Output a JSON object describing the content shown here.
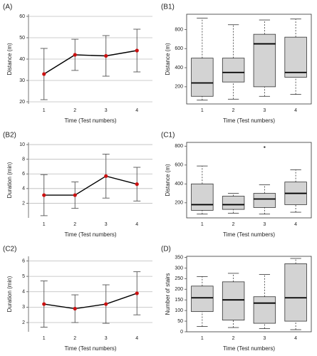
{
  "chart_data": [
    {
      "type": "line",
      "panel_label": "(A)",
      "x_label": "Time (Test numbers)",
      "y_label": "Distance (m)",
      "categories": [
        "1",
        "2",
        "3",
        "4"
      ],
      "values": [
        33,
        42,
        41.5,
        44
      ],
      "errors": [
        12,
        7.3,
        9.5,
        10
      ],
      "color": "#000000",
      "marker_color": "#cc1111",
      "ylim": [
        19,
        61
      ],
      "yticks": [
        20,
        30,
        40,
        50,
        60
      ],
      "grid": true
    },
    {
      "type": "box",
      "panel_label": "(B1)",
      "x_label": "Time (Test numbers)",
      "y_label": "Distance (m)",
      "categories": [
        "1",
        "2",
        "3",
        "4"
      ],
      "min": [
        60,
        70,
        100,
        120
      ],
      "q1": [
        100,
        250,
        200,
        300
      ],
      "median": [
        240,
        350,
        650,
        350
      ],
      "q3": [
        500,
        500,
        750,
        720
      ],
      "max": [
        920,
        850,
        900,
        910
      ],
      "outliers": [
        [],
        [],
        [],
        []
      ],
      "color": "#d3d3d3",
      "ylim": [
        20,
        960
      ],
      "yticks": [
        200,
        400,
        600,
        800
      ],
      "grid": false
    },
    {
      "type": "line",
      "panel_label": "(B2)",
      "x_label": "Time (Test numbers)",
      "y_label": "Duration (min)",
      "categories": [
        "1",
        "2",
        "3",
        "4"
      ],
      "values": [
        3.1,
        3.1,
        5.7,
        4.6
      ],
      "errors": [
        2.8,
        1.8,
        3,
        2.3
      ],
      "color": "#000000",
      "marker_color": "#cc1111",
      "ylim": [
        0,
        10.3
      ],
      "yticks": [
        2,
        4,
        6,
        8,
        10
      ],
      "grid": true
    },
    {
      "type": "box",
      "panel_label": "(C1)",
      "x_label": "Time (Test numbers)",
      "y_label": "Distance (m)",
      "categories": [
        "1",
        "2",
        "3",
        "4"
      ],
      "min": [
        80,
        90,
        80,
        100
      ],
      "q1": [
        120,
        130,
        150,
        180
      ],
      "median": [
        180,
        180,
        240,
        300
      ],
      "q3": [
        400,
        270,
        300,
        420
      ],
      "max": [
        590,
        300,
        390,
        550
      ],
      "outliers": [
        [],
        [],
        [
          790
        ],
        []
      ],
      "color": "#d3d3d3",
      "ylim": [
        40,
        840
      ],
      "yticks": [
        200,
        400,
        600,
        800
      ],
      "grid": false
    },
    {
      "type": "line",
      "panel_label": "(C2)",
      "x_label": "Time (Test numbers)",
      "y_label": "Duration (min)",
      "categories": [
        "1",
        "2",
        "3",
        "4"
      ],
      "values": [
        3.2,
        2.9,
        3.2,
        3.9
      ],
      "errors": [
        1.5,
        0.9,
        1.25,
        1.4
      ],
      "color": "#000000",
      "marker_color": "#cc1111",
      "ylim": [
        1.4,
        6.3
      ],
      "yticks": [
        2,
        3,
        4,
        5,
        6
      ],
      "grid": true
    },
    {
      "type": "box",
      "panel_label": "(D)",
      "x_label": "Time (Test numbers)",
      "y_label": "Number of stairs",
      "categories": [
        "1",
        "2",
        "3",
        "4"
      ],
      "min": [
        25,
        20,
        15,
        10
      ],
      "q1": [
        95,
        55,
        40,
        50
      ],
      "median": [
        160,
        150,
        135,
        160
      ],
      "q3": [
        215,
        235,
        165,
        320
      ],
      "max": [
        260,
        275,
        270,
        345
      ],
      "outliers": [
        [],
        [],
        [],
        []
      ],
      "color": "#d3d3d3",
      "ylim": [
        0,
        355
      ],
      "yticks": [
        0,
        50,
        100,
        150,
        200,
        250,
        300,
        350
      ],
      "grid": false
    }
  ]
}
